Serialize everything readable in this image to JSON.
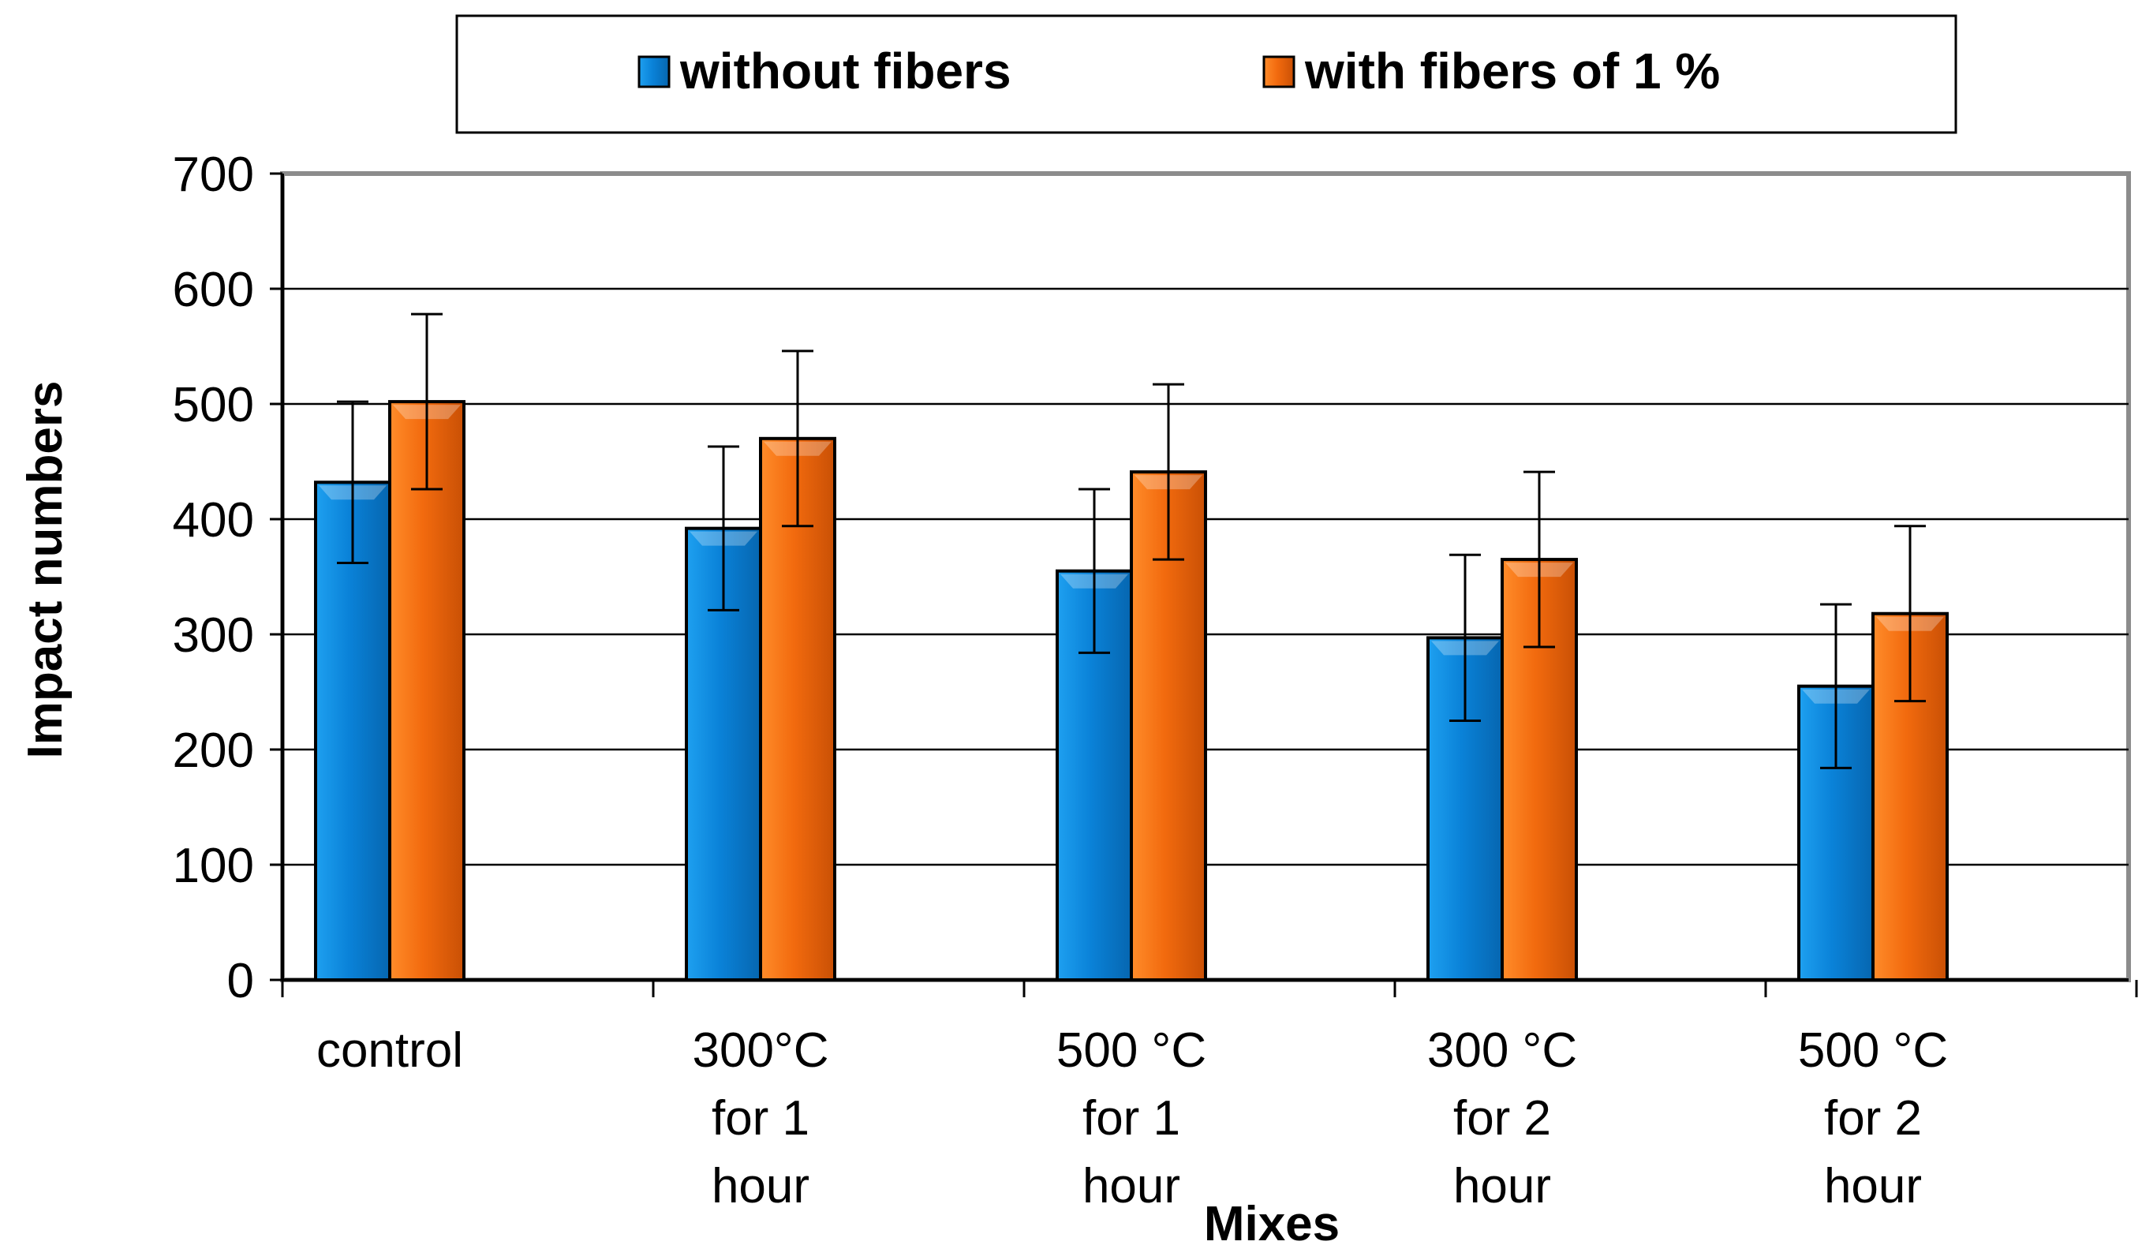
{
  "chart_data": {
    "type": "bar",
    "title": "",
    "xlabel": "Mixes",
    "ylabel": "Impact numbers",
    "ylim": [
      0,
      700
    ],
    "yticks": [
      0,
      100,
      200,
      300,
      400,
      500,
      600,
      700
    ],
    "grid": true,
    "legend_position": "top",
    "categories": [
      [
        "control"
      ],
      [
        "300°C",
        "for 1",
        "hour"
      ],
      [
        "500 °C",
        "for 1",
        "hour"
      ],
      [
        "300 °C",
        "for 2",
        "hour"
      ],
      [
        "500 °C",
        "for 2",
        "hour"
      ]
    ],
    "series": [
      {
        "name": "without fibers",
        "color": "#0a7bd0",
        "values": [
          432,
          392,
          355,
          297,
          255
        ],
        "error": [
          70,
          71,
          71,
          72,
          71
        ]
      },
      {
        "name": "with fibers of 1 %",
        "color": "#f0650a",
        "values": [
          502,
          470,
          441,
          365,
          318
        ],
        "error": [
          76,
          76,
          76,
          76,
          76
        ]
      }
    ]
  }
}
